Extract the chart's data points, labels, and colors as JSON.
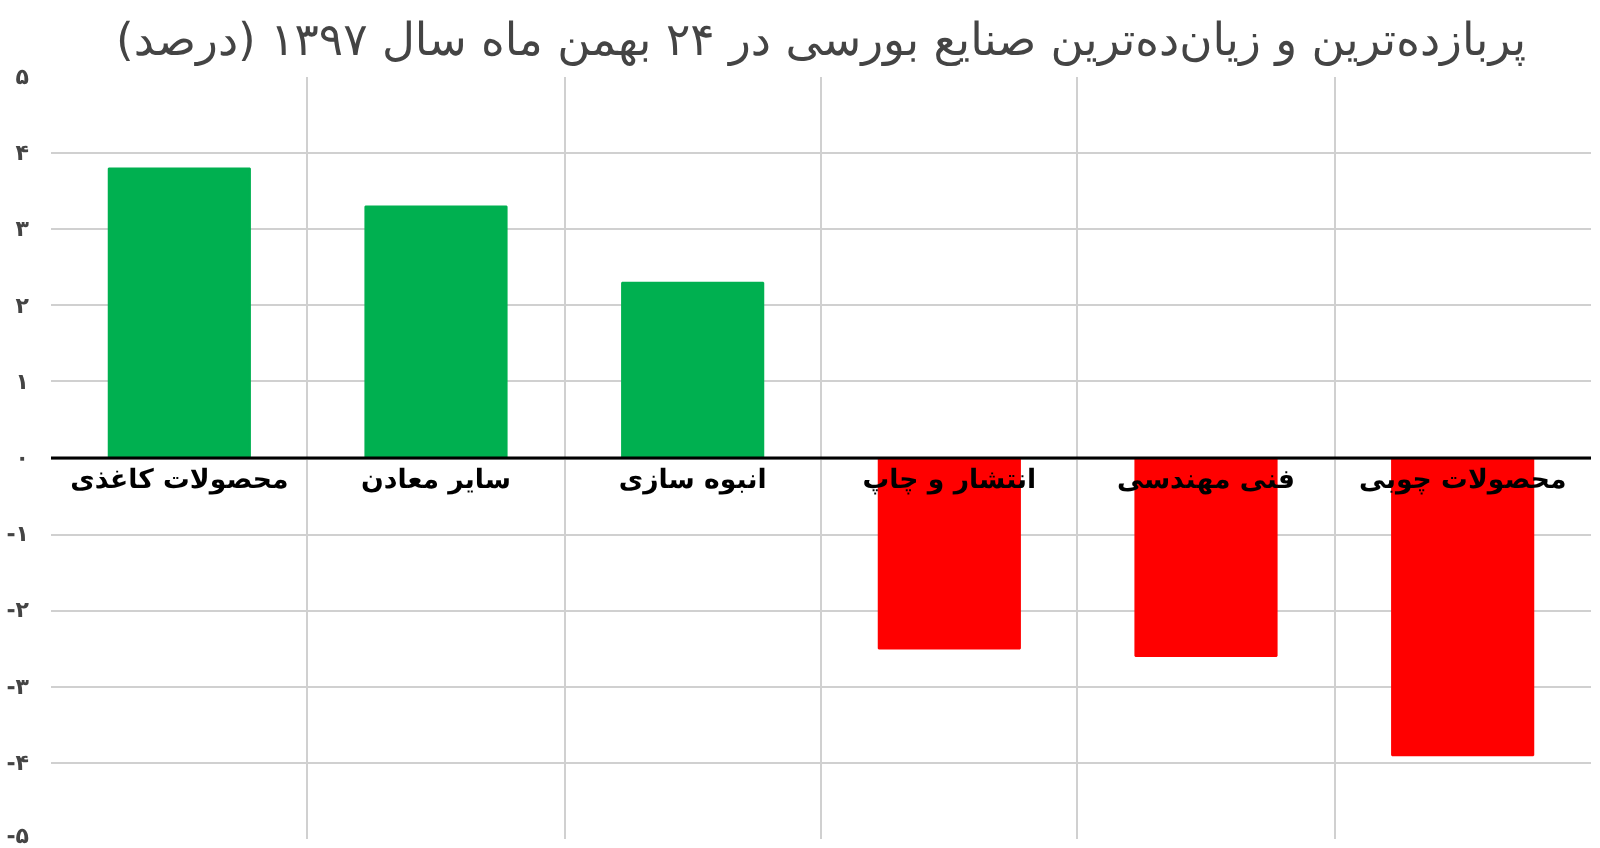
{
  "chart_data": {
    "type": "bar",
    "title": "پربازده‌ترین و زیان‌ده‌ترین صنایع بورسی در ۲۴ بهمن ماه سال ۱۳۹۷ (درصد)",
    "categories": [
      "محصولات کاغذی",
      "سایر معادن",
      "انبوه سازی",
      "انتشار و چاپ",
      "فنی مهندسی",
      "محصولات چوبی"
    ],
    "values": [
      3.8,
      3.3,
      2.3,
      -2.5,
      -2.6,
      -3.9
    ],
    "colors": [
      "#00b050",
      "#00b050",
      "#00b050",
      "#ff0000",
      "#ff0000",
      "#ff0000"
    ],
    "ylim": [
      -5,
      5
    ],
    "yticks": [
      {
        "value": 5,
        "label": "۵"
      },
      {
        "value": 4,
        "label": "۴"
      },
      {
        "value": 3,
        "label": "۳"
      },
      {
        "value": 2,
        "label": "۲"
      },
      {
        "value": 1,
        "label": "۱"
      },
      {
        "value": 0,
        "label": "۰"
      },
      {
        "value": -1,
        "label": "-۱"
      },
      {
        "value": -2,
        "label": "-۲"
      },
      {
        "value": -3,
        "label": "-۳"
      },
      {
        "value": -4,
        "label": "-۴"
      },
      {
        "value": -5,
        "label": "-۵"
      }
    ],
    "grid": true
  }
}
